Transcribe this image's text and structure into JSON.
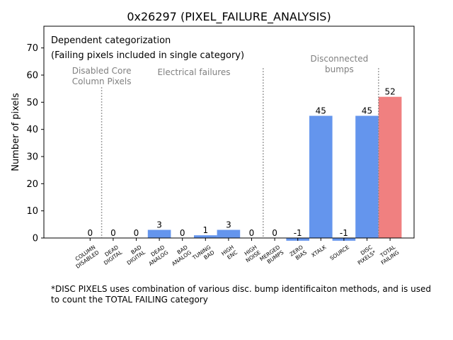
{
  "chart_data": {
    "type": "bar",
    "title": "0x26297 (PIXEL_FAILURE_ANALYSIS)",
    "xlabel": "",
    "ylabel": "Number of pixels",
    "ylim": [
      0,
      78
    ],
    "yticks": [
      0,
      10,
      20,
      30,
      40,
      50,
      60,
      70
    ],
    "categories": [
      "COLUMN\nDISABLED",
      "DEAD\nDIGITAL",
      "BAD\nDIGITAL",
      "DEAD\nANALOG",
      "BAD\nANALOG",
      "TUNING\nBAD",
      "HIGH\nENC",
      "HIGH\nNOISE",
      "MERGED\nBUMPS",
      "ZERO\nBIAS",
      "XTALK",
      "SOURCE",
      "DISC\nPIXELS*",
      "TOTAL\nFAILING"
    ],
    "values": [
      0,
      0,
      0,
      3,
      0,
      1,
      3,
      0,
      0,
      -1,
      45,
      -1,
      45,
      52
    ],
    "value_labels": [
      "0",
      "0",
      "0",
      "3",
      "0",
      "1",
      "3",
      "0",
      "0",
      "-1",
      "45",
      "-1",
      "45",
      "52"
    ],
    "bar_colors": [
      "#6495ed",
      "#6495ed",
      "#6495ed",
      "#6495ed",
      "#6495ed",
      "#6495ed",
      "#6495ed",
      "#6495ed",
      "#6495ed",
      "#6495ed",
      "#6495ed",
      "#6495ed",
      "#6495ed",
      "#f08080"
    ],
    "separators_after_index": [
      0,
      7,
      12
    ],
    "separator_top_value": 55.5,
    "separator_tops": [
      55.5,
      62.5,
      62.5
    ],
    "group_labels": [
      {
        "text": "Disabled Core\nColumn Pixels",
        "x_index": 0.5,
        "y": 60.5
      },
      {
        "text": "Electrical failures",
        "x_index": 4.5,
        "y": 60
      },
      {
        "text": "Disconnected\nbumps",
        "x_index": 10.8,
        "y": 65
      }
    ],
    "annotations": [
      {
        "text": "Dependent categorization"
      },
      {
        "text": "(Failing pixels included in single category)"
      }
    ],
    "grid": false,
    "legend": "none"
  },
  "footnote": "*DISC PIXELS uses combination of various disc. bump identificaiton methods, and is used\nto count the TOTAL FAILING category"
}
